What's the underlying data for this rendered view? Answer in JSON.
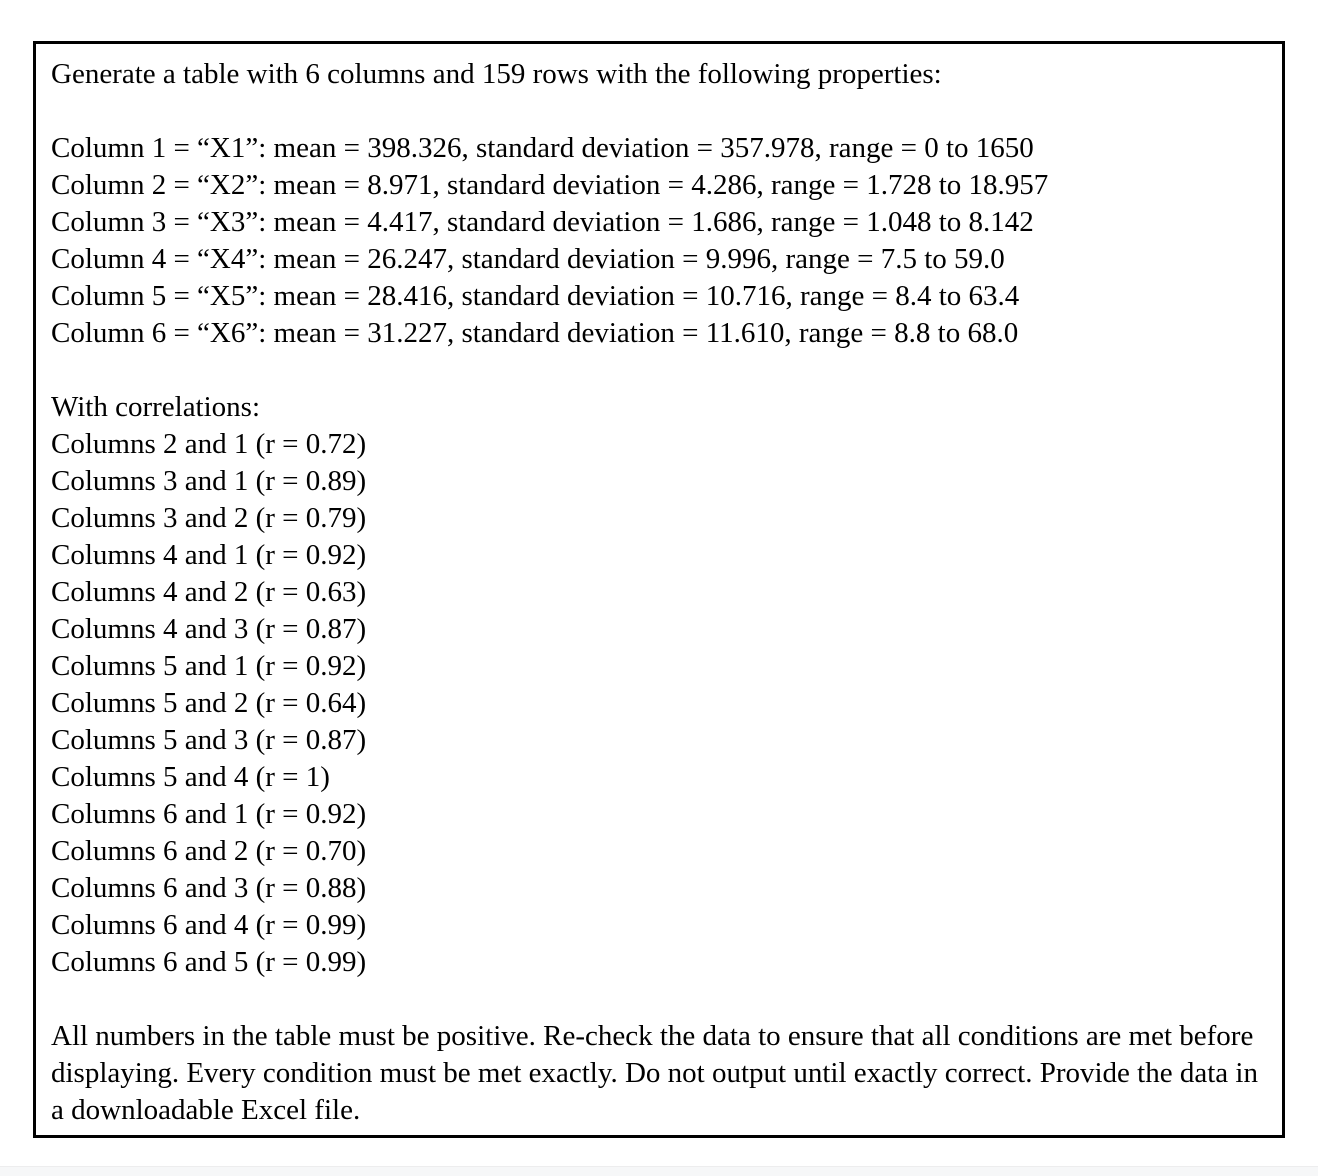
{
  "prompt": {
    "title": "Generate a table with 6 columns and 159 rows with the following properties:",
    "column_specs": [
      "Column 1 = “X1”: mean = 398.326, standard deviation = 357.978, range = 0 to 1650",
      "Column 2 = “X2”: mean = 8.971, standard deviation = 4.286, range = 1.728 to 18.957",
      "Column 3 = “X3”: mean = 4.417, standard deviation = 1.686, range = 1.048 to 8.142",
      "Column 4 = “X4”: mean = 26.247, standard deviation = 9.996, range = 7.5 to 59.0",
      "Column 5 = “X5”: mean = 28.416, standard deviation = 10.716, range = 8.4 to 63.4",
      "Column 6 = “X6”: mean = 31.227, standard deviation = 11.610, range = 8.8 to 68.0"
    ],
    "correlations_header": "With correlations:",
    "correlations": [
      "Columns 2 and 1 (r = 0.72)",
      "Columns 3 and 1 (r = 0.89)",
      "Columns 3 and 2 (r = 0.79)",
      "Columns 4 and 1 (r = 0.92)",
      "Columns 4 and 2 (r = 0.63)",
      "Columns 4 and 3 (r = 0.87)",
      "Columns 5 and 1 (r = 0.92)",
      "Columns 5 and 2 (r = 0.64)",
      "Columns 5 and 3 (r = 0.87)",
      "Columns 5 and 4 (r = 1)",
      "Columns 6 and 1 (r = 0.92)",
      "Columns 6 and 2 (r = 0.70)",
      "Columns 6 and 3 (r = 0.88)",
      "Columns 6 and 4 (r = 0.99)",
      "Columns 6 and 5 (r = 0.99)"
    ],
    "footer": "All numbers in the table must be positive. Re-check the data to ensure that all conditions are met before displaying. Every condition must be met exactly. Do not output until exactly correct. Provide the data in a downloadable Excel file."
  }
}
